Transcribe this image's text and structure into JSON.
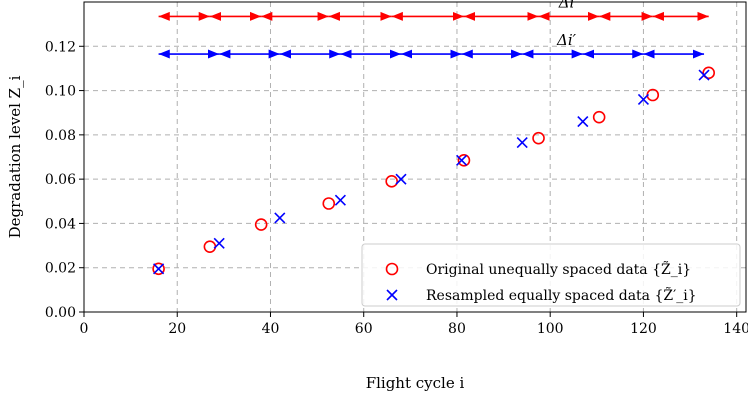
{
  "chart_data": {
    "type": "scatter",
    "xlabel": "Flight cycle i",
    "ylabel": "Degradation level Z_i",
    "xlim": [
      0,
      142
    ],
    "ylim": [
      0,
      0.14
    ],
    "grid": true,
    "legend_placement": "lower-right",
    "x_ticks": [
      0,
      20,
      40,
      60,
      80,
      100,
      120,
      140
    ],
    "y_ticks": [
      0.0,
      0.02,
      0.04,
      0.06,
      0.08,
      0.1,
      0.12
    ],
    "series": [
      {
        "name": "Original unequally spaced data {Z̃_i}",
        "marker": "circle",
        "color": "#ff0000",
        "points": [
          [
            16,
            0.0195
          ],
          [
            27,
            0.0295
          ],
          [
            38,
            0.0395
          ],
          [
            52.5,
            0.049
          ],
          [
            66,
            0.059
          ],
          [
            81.5,
            0.0685
          ],
          [
            97.5,
            0.0785
          ],
          [
            110.5,
            0.088
          ],
          [
            122,
            0.098
          ],
          [
            134,
            0.108
          ]
        ]
      },
      {
        "name": "Resampled equally spaced data {Z̃′_i}",
        "marker": "x",
        "color": "#0000ff",
        "points": [
          [
            16,
            0.0195
          ],
          [
            29,
            0.031
          ],
          [
            42,
            0.0425
          ],
          [
            55,
            0.0505
          ],
          [
            68,
            0.06
          ],
          [
            81,
            0.0685
          ],
          [
            94,
            0.0765
          ],
          [
            107,
            0.086
          ],
          [
            120,
            0.096
          ],
          [
            133,
            0.107
          ]
        ]
      }
    ],
    "annotations": [
      {
        "label": "Δi",
        "y": 0.1335,
        "color": "#ff0000",
        "marks": [
          16,
          27,
          38,
          52.5,
          66,
          81.5,
          97.5,
          110.5,
          122,
          134
        ]
      },
      {
        "label": "Δi′",
        "y": 0.1165,
        "color": "#0000ff",
        "marks": [
          16,
          29,
          42,
          55,
          68,
          81,
          94,
          107,
          120,
          133
        ]
      }
    ]
  }
}
